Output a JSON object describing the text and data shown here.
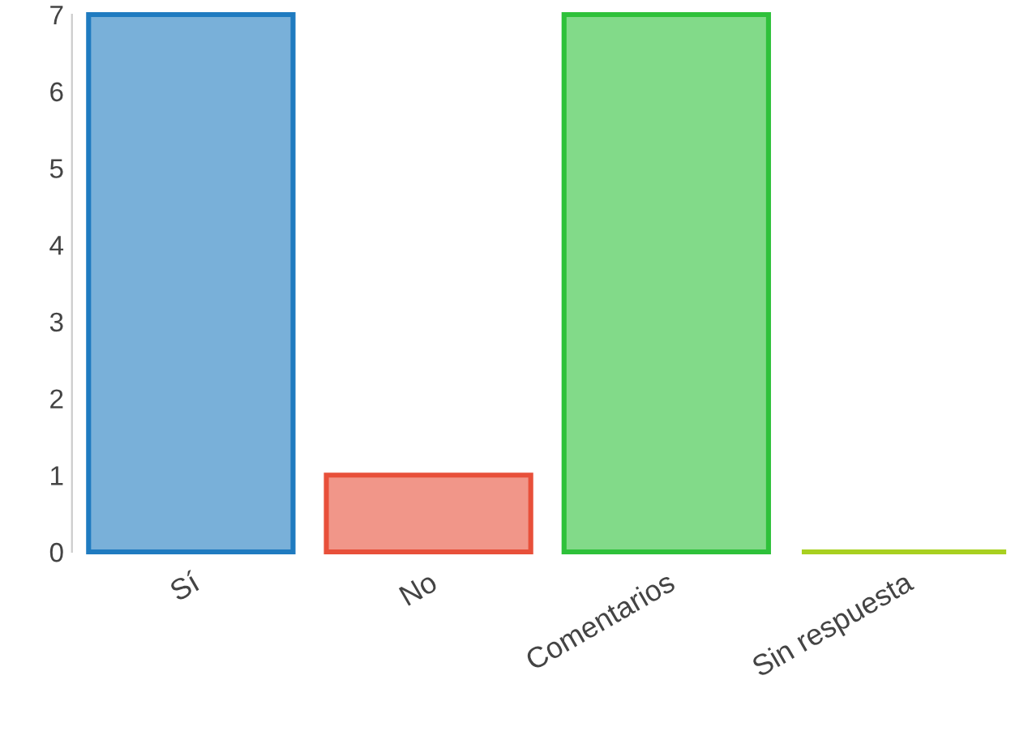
{
  "chart_data": {
    "type": "bar",
    "categories": [
      "Sí",
      "No",
      "Comentarios",
      "Sin respuesta"
    ],
    "values": [
      7,
      1,
      7,
      0
    ],
    "colors": [
      "#1f7bc0",
      "#e8503a",
      "#2ec13a",
      "#a8d020"
    ],
    "ylim": [
      0,
      7
    ],
    "yticks": [
      0,
      1,
      2,
      3,
      4,
      5,
      6,
      7
    ],
    "grid": false
  }
}
